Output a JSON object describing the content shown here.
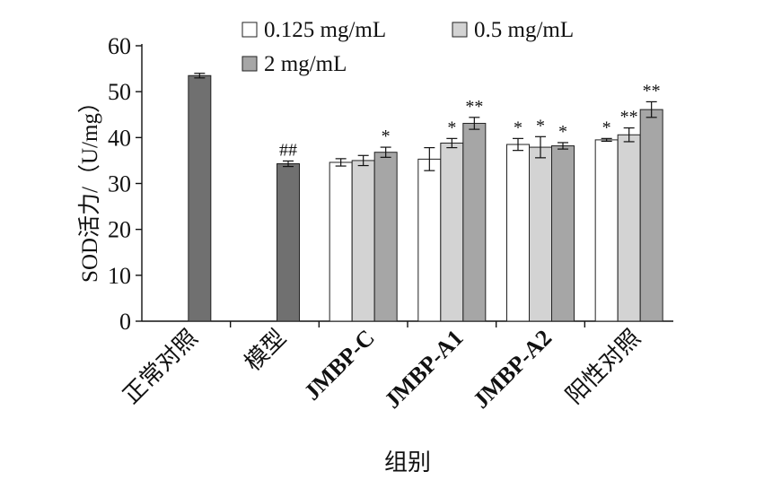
{
  "chart_data": {
    "type": "bar",
    "ylabel": "SOD活力/（U/mg）",
    "xlabel": "组别",
    "ylim": [
      0,
      60
    ],
    "yticks": [
      0,
      10,
      20,
      30,
      40,
      50,
      60
    ],
    "legend_position": "top",
    "categories": [
      "正常对照",
      "模型",
      "JMBP-C",
      "JMBP-A1",
      "JMBP-A2",
      "阳性对照"
    ],
    "series": [
      {
        "name": "0.125 mg/mL",
        "color": "#ffffff",
        "values": [
          null,
          null,
          34.6,
          35.3,
          38.5,
          39.5
        ],
        "errors": [
          null,
          null,
          0.8,
          2.5,
          1.3,
          0.3
        ],
        "marks": [
          null,
          null,
          "",
          "",
          "*",
          "*"
        ]
      },
      {
        "name": "0.5 mg/mL",
        "color": "#d3d3d3",
        "values": [
          null,
          null,
          35.0,
          38.8,
          37.9,
          40.6
        ],
        "errors": [
          null,
          null,
          1.1,
          1.0,
          2.3,
          1.5
        ],
        "marks": [
          null,
          null,
          "",
          "*",
          "*",
          "**"
        ]
      },
      {
        "name": "2 mg/mL",
        "color": "#a6a6a6",
        "values": [
          null,
          null,
          36.8,
          43.1,
          38.2,
          46.1
        ],
        "errors": [
          null,
          null,
          1.1,
          1.3,
          0.7,
          1.7
        ],
        "marks": [
          null,
          null,
          "*",
          "**",
          "*",
          "**"
        ]
      }
    ],
    "single_bars": [
      {
        "category": "正常对照",
        "value": 53.5,
        "error": 0.5,
        "mark": "",
        "color": "#707070"
      },
      {
        "category": "模型",
        "value": 34.3,
        "error": 0.6,
        "mark": "##",
        "color": "#707070"
      }
    ]
  }
}
